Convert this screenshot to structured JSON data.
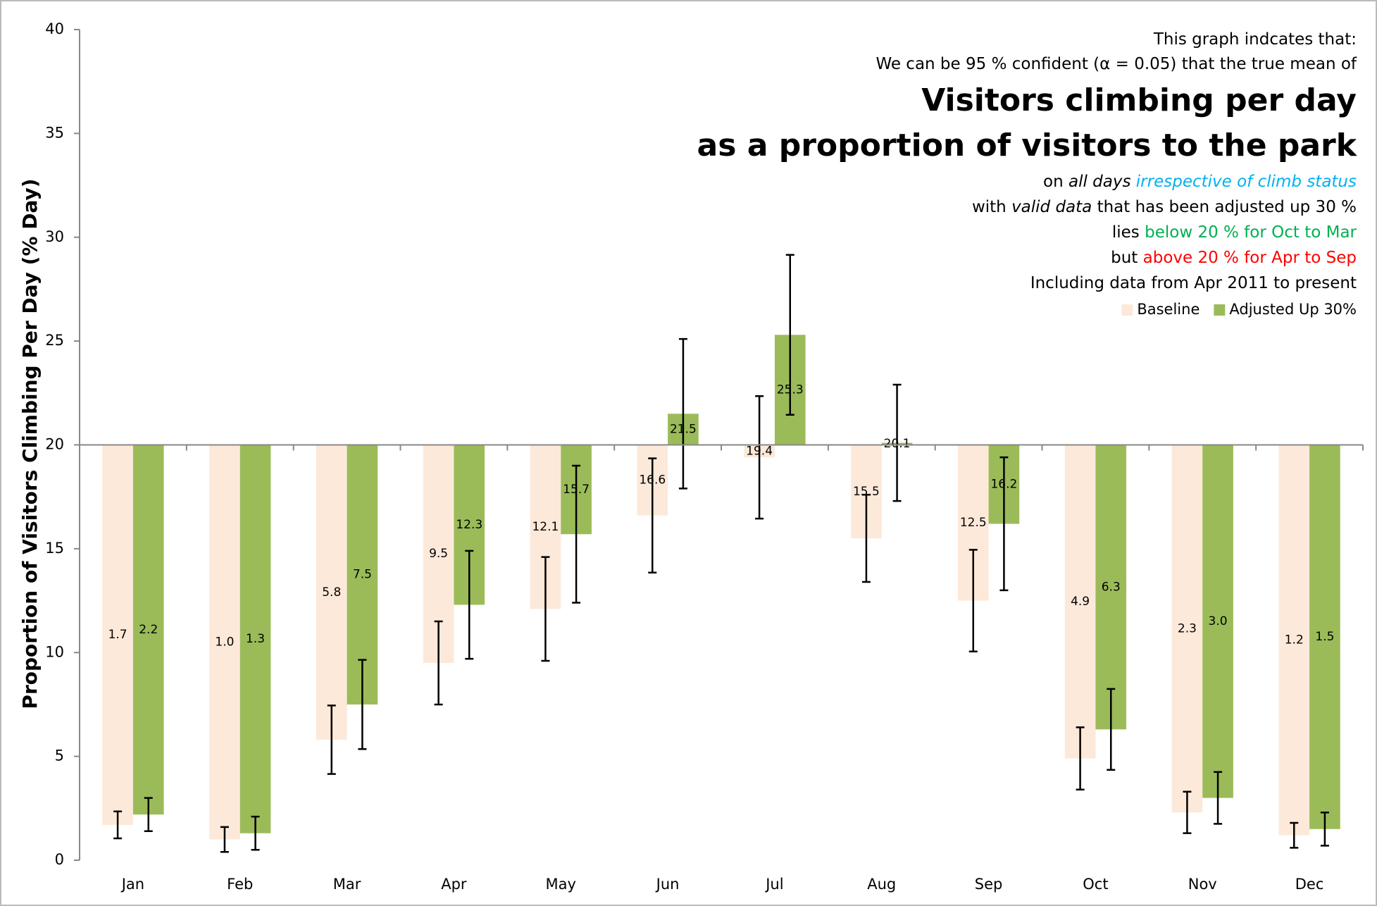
{
  "chart_data": {
    "type": "bar",
    "notes_above": [
      [
        {
          "text": "This graph indcates that:"
        }
      ],
      [
        {
          "text": "We can be 95 % confident (α = 0.05) that the true mean of"
        }
      ]
    ],
    "title": "Visitors climbing per day",
    "subtitle": "as a proportion of visitors to the park",
    "notes_below": [
      [
        {
          "text": "on "
        },
        {
          "text": "all days ",
          "italic": true
        },
        {
          "text": "irrespective of climb status",
          "italic": true,
          "color": "#00b0f0"
        }
      ],
      [
        {
          "text": "with "
        },
        {
          "text": "valid data",
          "italic": true
        },
        {
          "text": " that has been adjusted up 30 %"
        }
      ],
      [
        {
          "text": "lies "
        },
        {
          "text": "below 20 % for Oct to Mar",
          "color": "#00b050"
        }
      ],
      [
        {
          "text": "but "
        },
        {
          "text": "above 20 % for Apr to Sep",
          "color": "#ff0000"
        }
      ],
      [
        {
          "text": "Including data from Apr 2011 to present"
        }
      ]
    ],
    "y_label": "Proportion of Visitors Climbing Per Day (% Day)",
    "categories": [
      "Jan",
      "Feb",
      "Mar",
      "Apr",
      "May",
      "Jun",
      "Jul",
      "Aug",
      "Sep",
      "Oct",
      "Nov",
      "Dec"
    ],
    "series": [
      {
        "name": "Baseline",
        "color": "#fde9d9",
        "values": [
          1.7,
          1.0,
          5.8,
          9.5,
          12.1,
          16.6,
          19.4,
          15.5,
          12.5,
          4.9,
          2.3,
          1.2
        ],
        "value_labels": [
          "1.7",
          "1.0",
          "5.8",
          "9.5",
          "12.1",
          "16.6",
          "19.4",
          "15.5",
          "12.5",
          "4.9",
          "2.3",
          "1.2"
        ],
        "errors": [
          0.65,
          0.6,
          1.65,
          2.0,
          2.5,
          2.75,
          2.95,
          2.1,
          2.45,
          1.5,
          1.0,
          0.6
        ]
      },
      {
        "name": "Adjusted Up 30%",
        "color": "#9bbb59",
        "values": [
          2.2,
          1.3,
          7.5,
          12.3,
          15.7,
          21.5,
          25.3,
          20.1,
          16.2,
          6.3,
          3.0,
          1.5
        ],
        "value_labels": [
          "2.2",
          "1.3",
          "7.5",
          "12.3",
          "15.7",
          "21.5",
          "25.3",
          "20.1",
          "16.2",
          "6.3",
          "3.0",
          "1.5"
        ],
        "errors": [
          0.8,
          0.8,
          2.15,
          2.6,
          3.3,
          3.6,
          3.85,
          2.8,
          3.2,
          1.95,
          1.25,
          0.8
        ]
      }
    ],
    "x_axis_crosses": 20,
    "ylim": [
      0,
      40
    ],
    "yticks": [
      0,
      5,
      10,
      15,
      20,
      25,
      30,
      35,
      40
    ]
  }
}
